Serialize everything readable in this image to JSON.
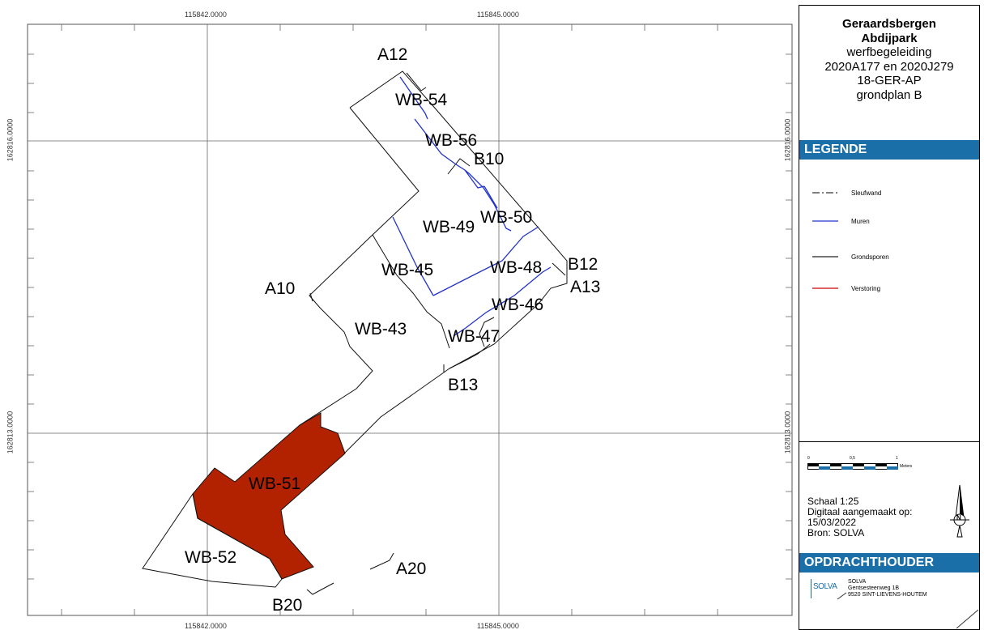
{
  "map": {
    "coords": {
      "x1": "115842.0000",
      "x2": "115845.0000",
      "y1": "162816.0000",
      "y2": "162813.0000"
    },
    "labels": {
      "A12": "A12",
      "WB54": "WB-54",
      "WB56": "WB-56",
      "B10": "B10",
      "WB49": "WB-49",
      "WB50": "WB-50",
      "WB45": "WB-45",
      "WB48": "WB-48",
      "B12": "B12",
      "A13": "A13",
      "A10": "A10",
      "WB46": "WB-46",
      "WB43": "WB-43",
      "WB47": "WB-47",
      "B13": "B13",
      "WB51": "WB-51",
      "WB52": "WB-52",
      "A20": "A20",
      "B20": "B20"
    },
    "colors": {
      "verstoring_fill": "#b22200",
      "muren": "#2233cc",
      "grondsporen": "#222222"
    }
  },
  "panel": {
    "title_line1": "Geraardsbergen",
    "title_line2": "Abdijpark",
    "title_line3": "werfbegeleiding",
    "title_line4": "2020A177 en 2020J279",
    "title_line5": "18-GER-AP",
    "title_line6": "grondplan B",
    "legend_header": "LEGENDE",
    "legend": [
      {
        "label": "Sleufwand",
        "color": "#333333",
        "style": "dashdot"
      },
      {
        "label": "Muren",
        "color": "#2233cc",
        "style": "solid"
      },
      {
        "label": "Grondsporen",
        "color": "#222222",
        "style": "solid"
      },
      {
        "label": "Verstoring",
        "color": "#cc0000",
        "style": "solid"
      }
    ],
    "scalebar": {
      "tick0": "0",
      "tick1": "0,5",
      "tick2": "1",
      "unit": "Meters"
    },
    "scale_text": "Schaal 1:25",
    "digital_line1": "Digitaal aangemaakt op:",
    "digital_line2": "15/03/2022",
    "source": "Bron: SOLVA",
    "north_letter": "N",
    "client_header": "OPDRACHTHOUDER",
    "client_logo": "SOLVA",
    "client_name": "SOLVA",
    "client_addr1": "Gentsesteenweg 1B",
    "client_addr2": "9520 SINT-LIEVENS-HOUTEM"
  }
}
